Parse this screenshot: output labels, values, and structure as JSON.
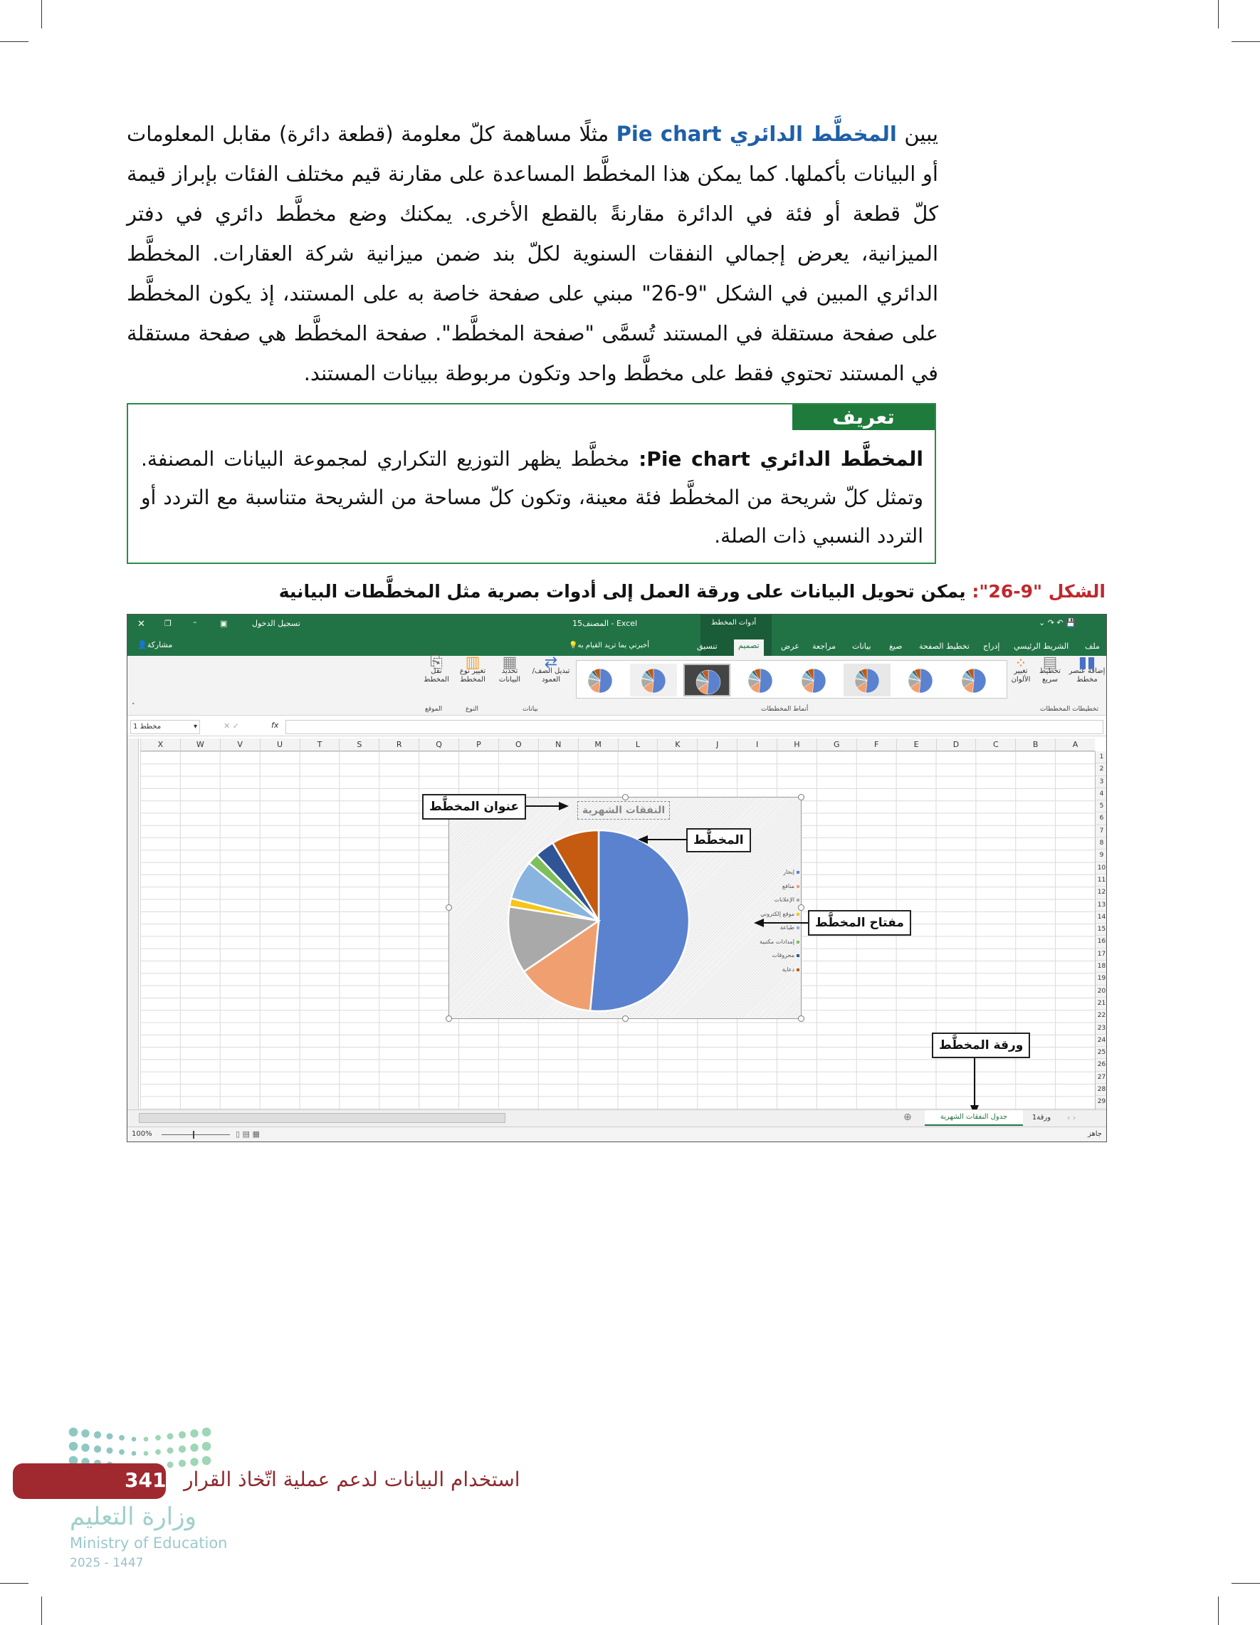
{
  "body": {
    "p_start": "يبين ",
    "p_term": "المخطَّط الدائري Pie chart",
    "p_rest": " مثلًا مساهمة كلّ معلومة (قطعة دائرة) مقابل المعلومات أو البيانات بأكملها. كما يمكن هذا المخطَّط المساعدة على مقارنة قيم مختلف الفئات بإبراز قيمة كلّ قطعة أو فئة في الدائرة مقارنةً بالقطع الأخرى. يمكنك وضع مخطَّط دائري في دفتر الميزانية، يعرض إجمالي النفقات السنوية لكلّ بند ضمن ميزانية شركة العقارات. المخطَّط الدائري المبين في الشكل \"9-26\" مبني على صفحة خاصة به على المستند، إذ يكون المخطَّط على صفحة مستقلة في المستند تُسمَّى \"صفحة المخطَّط\". صفحة المخطَّط هي صفحة مستقلة في المستند تحتوي فقط على مخطَّط واحد وتكون مربوطة ببيانات المستند."
  },
  "definition": {
    "title": "تعريف",
    "term": "المخطَّط الدائري Pie chart:",
    "text": " مخطَّط يظهر التوزيع التكراري لمجموعة البيانات المصنفة. وتمثل كلّ شريحة من المخطَّط فئة معينة، وتكون كلّ مساحة من الشريحة متناسبة مع التردد أو التردد النسبي ذات الصلة."
  },
  "figure": {
    "label": "الشكل \"9-26\": ",
    "caption": "يمكن تحويل البيانات على ورقة العمل إلى أدوات بصرية مثل المخطَّطات البيانية"
  },
  "excel": {
    "title": "المصنف15 - Excel",
    "context_tab": "أدوات المخطط",
    "sign_in": "تسجيل الدخول",
    "share": "مشاركة",
    "tell_me": "أخبرني بما تريد القيام به",
    "tabs": [
      "ملف",
      "الشريط الرئيسي",
      "إدراج",
      "تخطيط الصفحة",
      "صيغ",
      "بيانات",
      "مراجعة",
      "عرض",
      "تصميم",
      "تنسيق"
    ],
    "ribbon": {
      "add_element": "إضافة عنصر مخطط",
      "quick_layout": "تخطيط سريع",
      "layouts_group": "تخطيطات المخططات",
      "change_colors": "تغيير الألوان",
      "styles_group": "أنماط المخططات",
      "switch_row_col": "تبديل الصف/العمود",
      "select_data": "تحديد البيانات",
      "data_group": "بيانات",
      "change_type": "تغيير نوع المخطط",
      "type_group": "النوع",
      "move_chart": "نقل المخطط",
      "location_group": "الموقع"
    },
    "name_box": "مخطط 1",
    "fx": "fx",
    "columns": [
      "A",
      "B",
      "C",
      "D",
      "E",
      "F",
      "G",
      "H",
      "I",
      "J",
      "K",
      "L",
      "M",
      "N",
      "O",
      "P",
      "Q",
      "R",
      "S",
      "T",
      "U",
      "V",
      "W",
      "X"
    ],
    "rows": [
      "1",
      "2",
      "3",
      "4",
      "5",
      "6",
      "7",
      "8",
      "9",
      "10",
      "11",
      "12",
      "13",
      "14",
      "15",
      "16",
      "17",
      "18",
      "19",
      "20",
      "21",
      "22",
      "23",
      "24",
      "25",
      "26",
      "27",
      "28",
      "29"
    ],
    "sheets": [
      "جدول النفقات الشهرية",
      "ورقة1"
    ],
    "status": "جاهز",
    "zoom": "100%"
  },
  "chart_data": {
    "type": "pie",
    "title": "النفقات الشهرية",
    "categories": [
      "إيجار",
      "منافع",
      "الإعلانات",
      "موقع إلكتروني",
      "طباعة",
      "إمدادات مكتبية",
      "محروقات",
      "دعاية"
    ],
    "values": [
      51.5,
      14,
      12,
      1.5,
      7,
      2,
      3.5,
      8.5
    ],
    "colors": [
      "#5b82cf",
      "#f0a070",
      "#a9a9a9",
      "#f5c518",
      "#8ab4e0",
      "#7dbf5a",
      "#2f5597",
      "#c55a11"
    ],
    "legend": "right"
  },
  "callouts": {
    "chart_title": "عنوان المخطَّط",
    "chart": "المخطَّط",
    "legend": "مفتاح المخطَّط",
    "chart_sheet": "ورقة المخطَّط"
  },
  "footer": {
    "page": "341",
    "title": "استخدام البيانات لدعم عملية اتّخاذ القرار",
    "logo_ar": "وزارة التعليم",
    "logo_en": "Ministry of Education",
    "year": "2025 - 1447"
  }
}
